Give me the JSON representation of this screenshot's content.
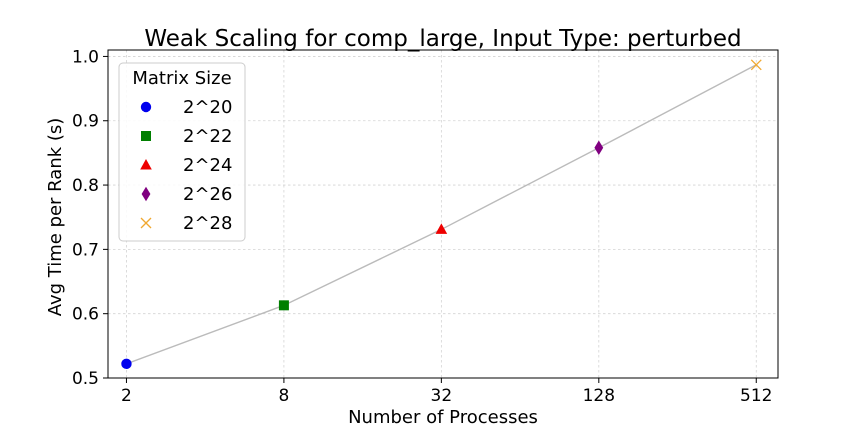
{
  "chart_data": {
    "type": "line",
    "title": "Weak Scaling for comp_large, Input Type: perturbed",
    "xlabel": "Number of Processes",
    "ylabel": "Avg Time per Rank (s)",
    "x_scale": "log2",
    "x": [
      2,
      8,
      32,
      128,
      512
    ],
    "x_tick_labels": [
      "2",
      "8",
      "32",
      "128",
      "512"
    ],
    "y_ticks": [
      0.5,
      0.6,
      0.7,
      0.8,
      0.9,
      1.0
    ],
    "y_tick_labels": [
      "0.5",
      "0.6",
      "0.7",
      "0.8",
      "0.9",
      "1.0"
    ],
    "xlim": [
      1.7,
      620
    ],
    "ylim": [
      0.5,
      1.01
    ],
    "grid": true,
    "line_color": "#bbbbbb",
    "legend": {
      "title": "Matrix Size",
      "placement": "top-left"
    },
    "series": [
      {
        "name": "2^20",
        "x": 2,
        "y": 0.522,
        "marker": "circle",
        "color": "#0000ee"
      },
      {
        "name": "2^22",
        "x": 8,
        "y": 0.613,
        "marker": "square",
        "color": "#007f00"
      },
      {
        "name": "2^24",
        "x": 32,
        "y": 0.731,
        "marker": "triangle",
        "color": "#ee0000"
      },
      {
        "name": "2^26",
        "x": 128,
        "y": 0.858,
        "marker": "diamond",
        "color": "#800080"
      },
      {
        "name": "2^28",
        "x": 512,
        "y": 0.987,
        "marker": "x",
        "color": "#f0a830"
      }
    ]
  }
}
